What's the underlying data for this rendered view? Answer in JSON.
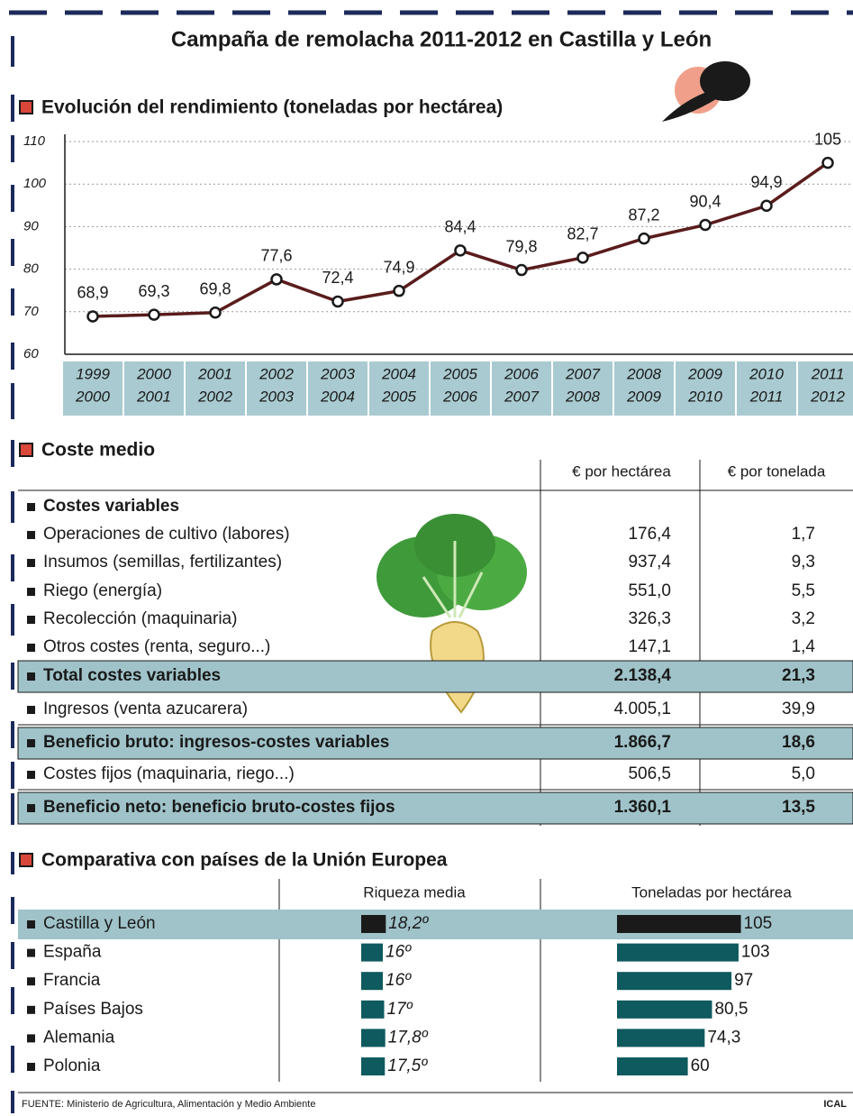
{
  "title": "Campaña de remolacha 2011-2012 en Castilla y León",
  "chart_data": {
    "type": "line",
    "title": "Evolución del rendimiento (toneladas por hectárea)",
    "categories": [
      [
        "1999",
        "2000"
      ],
      [
        "2000",
        "2001"
      ],
      [
        "2001",
        "2002"
      ],
      [
        "2002",
        "2003"
      ],
      [
        "2003",
        "2004"
      ],
      [
        "2004",
        "2005"
      ],
      [
        "2005",
        "2006"
      ],
      [
        "2006",
        "2007"
      ],
      [
        "2007",
        "2008"
      ],
      [
        "2008",
        "2009"
      ],
      [
        "2009",
        "2010"
      ],
      [
        "2010",
        "2011"
      ],
      [
        "2011",
        "2012"
      ]
    ],
    "values": [
      68.9,
      69.3,
      69.8,
      77.6,
      72.4,
      74.9,
      84.4,
      79.8,
      82.7,
      87.2,
      90.4,
      94.9,
      105
    ],
    "value_labels": [
      "68,9",
      "69,3",
      "69,8",
      "77,6",
      "72,4",
      "74,9",
      "84,4",
      "79,8",
      "82,7",
      "87,2",
      "90,4",
      "94,9",
      "105"
    ],
    "color": "#5a1c1c",
    "ylim": [
      60,
      110
    ],
    "yticks": [
      60,
      70,
      80,
      90,
      100,
      110
    ],
    "grid": true
  },
  "cost": {
    "title": "Coste medio",
    "columns": [
      "€ por hectárea",
      "€ por tonelada"
    ],
    "rows": [
      {
        "label": "Costes variables",
        "bold": true
      },
      {
        "label": "Operaciones de cultivo (labores)",
        "cells": [
          "176,4",
          "1,7"
        ]
      },
      {
        "label": "Insumos (semillas, fertilizantes)",
        "cells": [
          "937,4",
          "9,3"
        ]
      },
      {
        "label": "Riego (energía)",
        "cells": [
          "551,0",
          "5,5"
        ]
      },
      {
        "label": "Recolección (maquinaria)",
        "cells": [
          "326,3",
          "3,2"
        ]
      },
      {
        "label": "Otros costes (renta, seguro...)",
        "cells": [
          "147,1",
          "1,4"
        ]
      },
      {
        "label": "Total costes variables",
        "cells": [
          "2.138,4",
          "21,3"
        ],
        "bold": true,
        "highlight": true
      },
      {
        "label": "Ingresos (venta azucarera)",
        "cells": [
          "4.005,1",
          "39,9"
        ]
      },
      {
        "label": "Beneficio bruto: ingresos-costes variables",
        "cells": [
          "1.866,7",
          "18,6"
        ],
        "bold": true,
        "highlight": true
      },
      {
        "label": "Costes fijos (maquinaria, riego...)",
        "cells": [
          "506,5",
          "5,0"
        ]
      },
      {
        "label": "Beneficio neto: beneficio bruto-costes fijos",
        "cells": [
          "1.360,1",
          "13,5"
        ],
        "bold": true,
        "highlight": true
      }
    ]
  },
  "comparison": {
    "type": "bar",
    "title": "Comparativa con países de la Unión Europea",
    "categories": [
      "Castilla y León",
      "España",
      "Francia",
      "Países Bajos",
      "Alemania",
      "Polonia"
    ],
    "highlight": [
      true,
      false,
      false,
      false,
      false,
      false
    ],
    "color": "#0e5a5e",
    "highlight_color": "#1a1a1a",
    "series": [
      {
        "name": "Riqueza media",
        "values": [
          18.2,
          16,
          16,
          17,
          17.8,
          17.5
        ],
        "value_labels": [
          "18,2º",
          "16º",
          "16º",
          "17º",
          "17,8º",
          "17,5º"
        ]
      },
      {
        "name": "Toneladas por hectárea",
        "values": [
          105,
          103,
          97,
          80.5,
          74.3,
          60
        ],
        "value_labels": [
          "105",
          "103",
          "97",
          "80,5",
          "74,3",
          "60"
        ]
      }
    ]
  },
  "source": "FUENTE: Ministerio de Agricultura, Alimentación y Medio Ambiente",
  "credit": "ICAL"
}
